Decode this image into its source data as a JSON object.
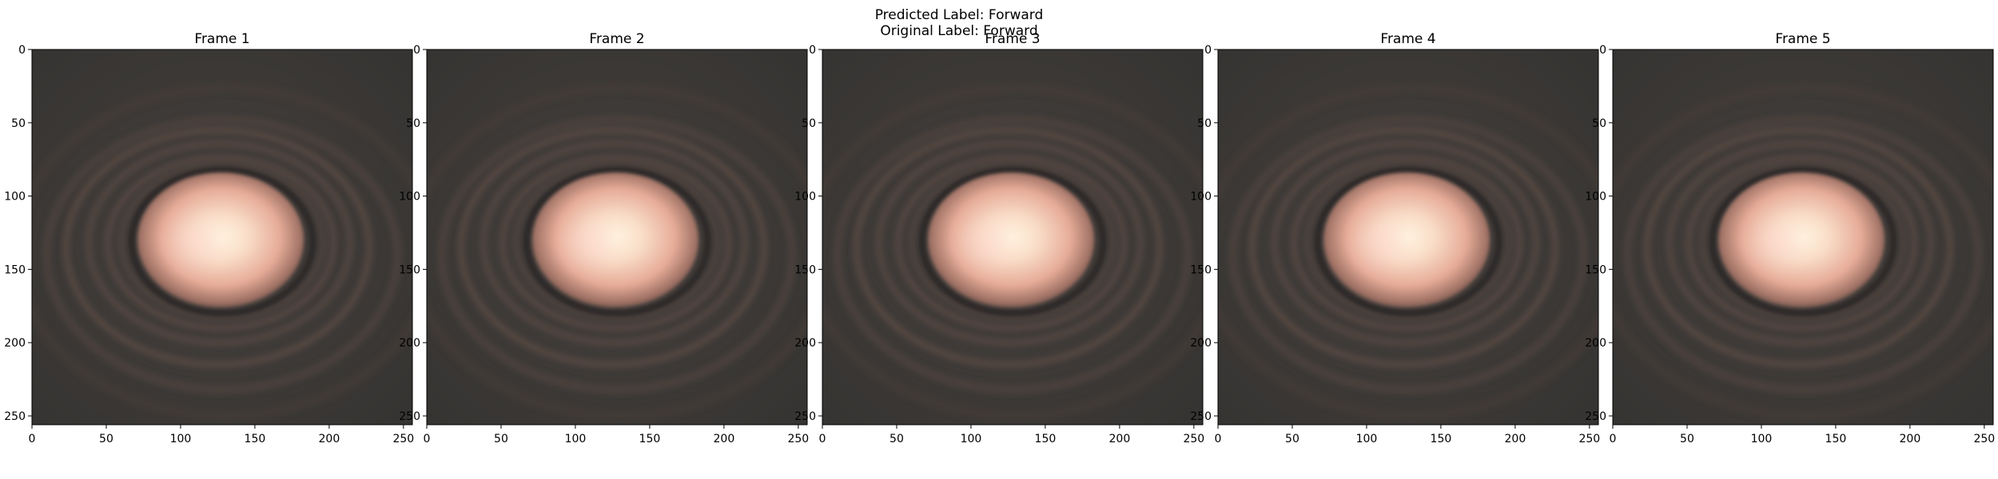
{
  "figure": {
    "suptitle_line1": "Predicted Label: Forward",
    "suptitle_line2": "Original Label: Forward"
  },
  "chart_data": {
    "type": "image",
    "description_of_content": "five frames of an image sequence shown as panels",
    "frames": [
      {
        "title": "Frame 1"
      },
      {
        "title": "Frame 2"
      },
      {
        "title": "Frame 3"
      },
      {
        "title": "Frame 4"
      },
      {
        "title": "Frame 5"
      }
    ],
    "xticks": [
      0,
      50,
      100,
      150,
      200,
      250
    ],
    "yticks": [
      0,
      50,
      100,
      150,
      200,
      250
    ],
    "xlim": [
      0,
      256
    ],
    "ylim": [
      256,
      0
    ],
    "image_size": [
      256,
      256
    ],
    "colors": {
      "background": "#3a3937",
      "ring": "#5a4c46",
      "core_center": "#fff2dd",
      "core_mid": "#f3c2ae",
      "core_edge": "#9a7064"
    }
  }
}
